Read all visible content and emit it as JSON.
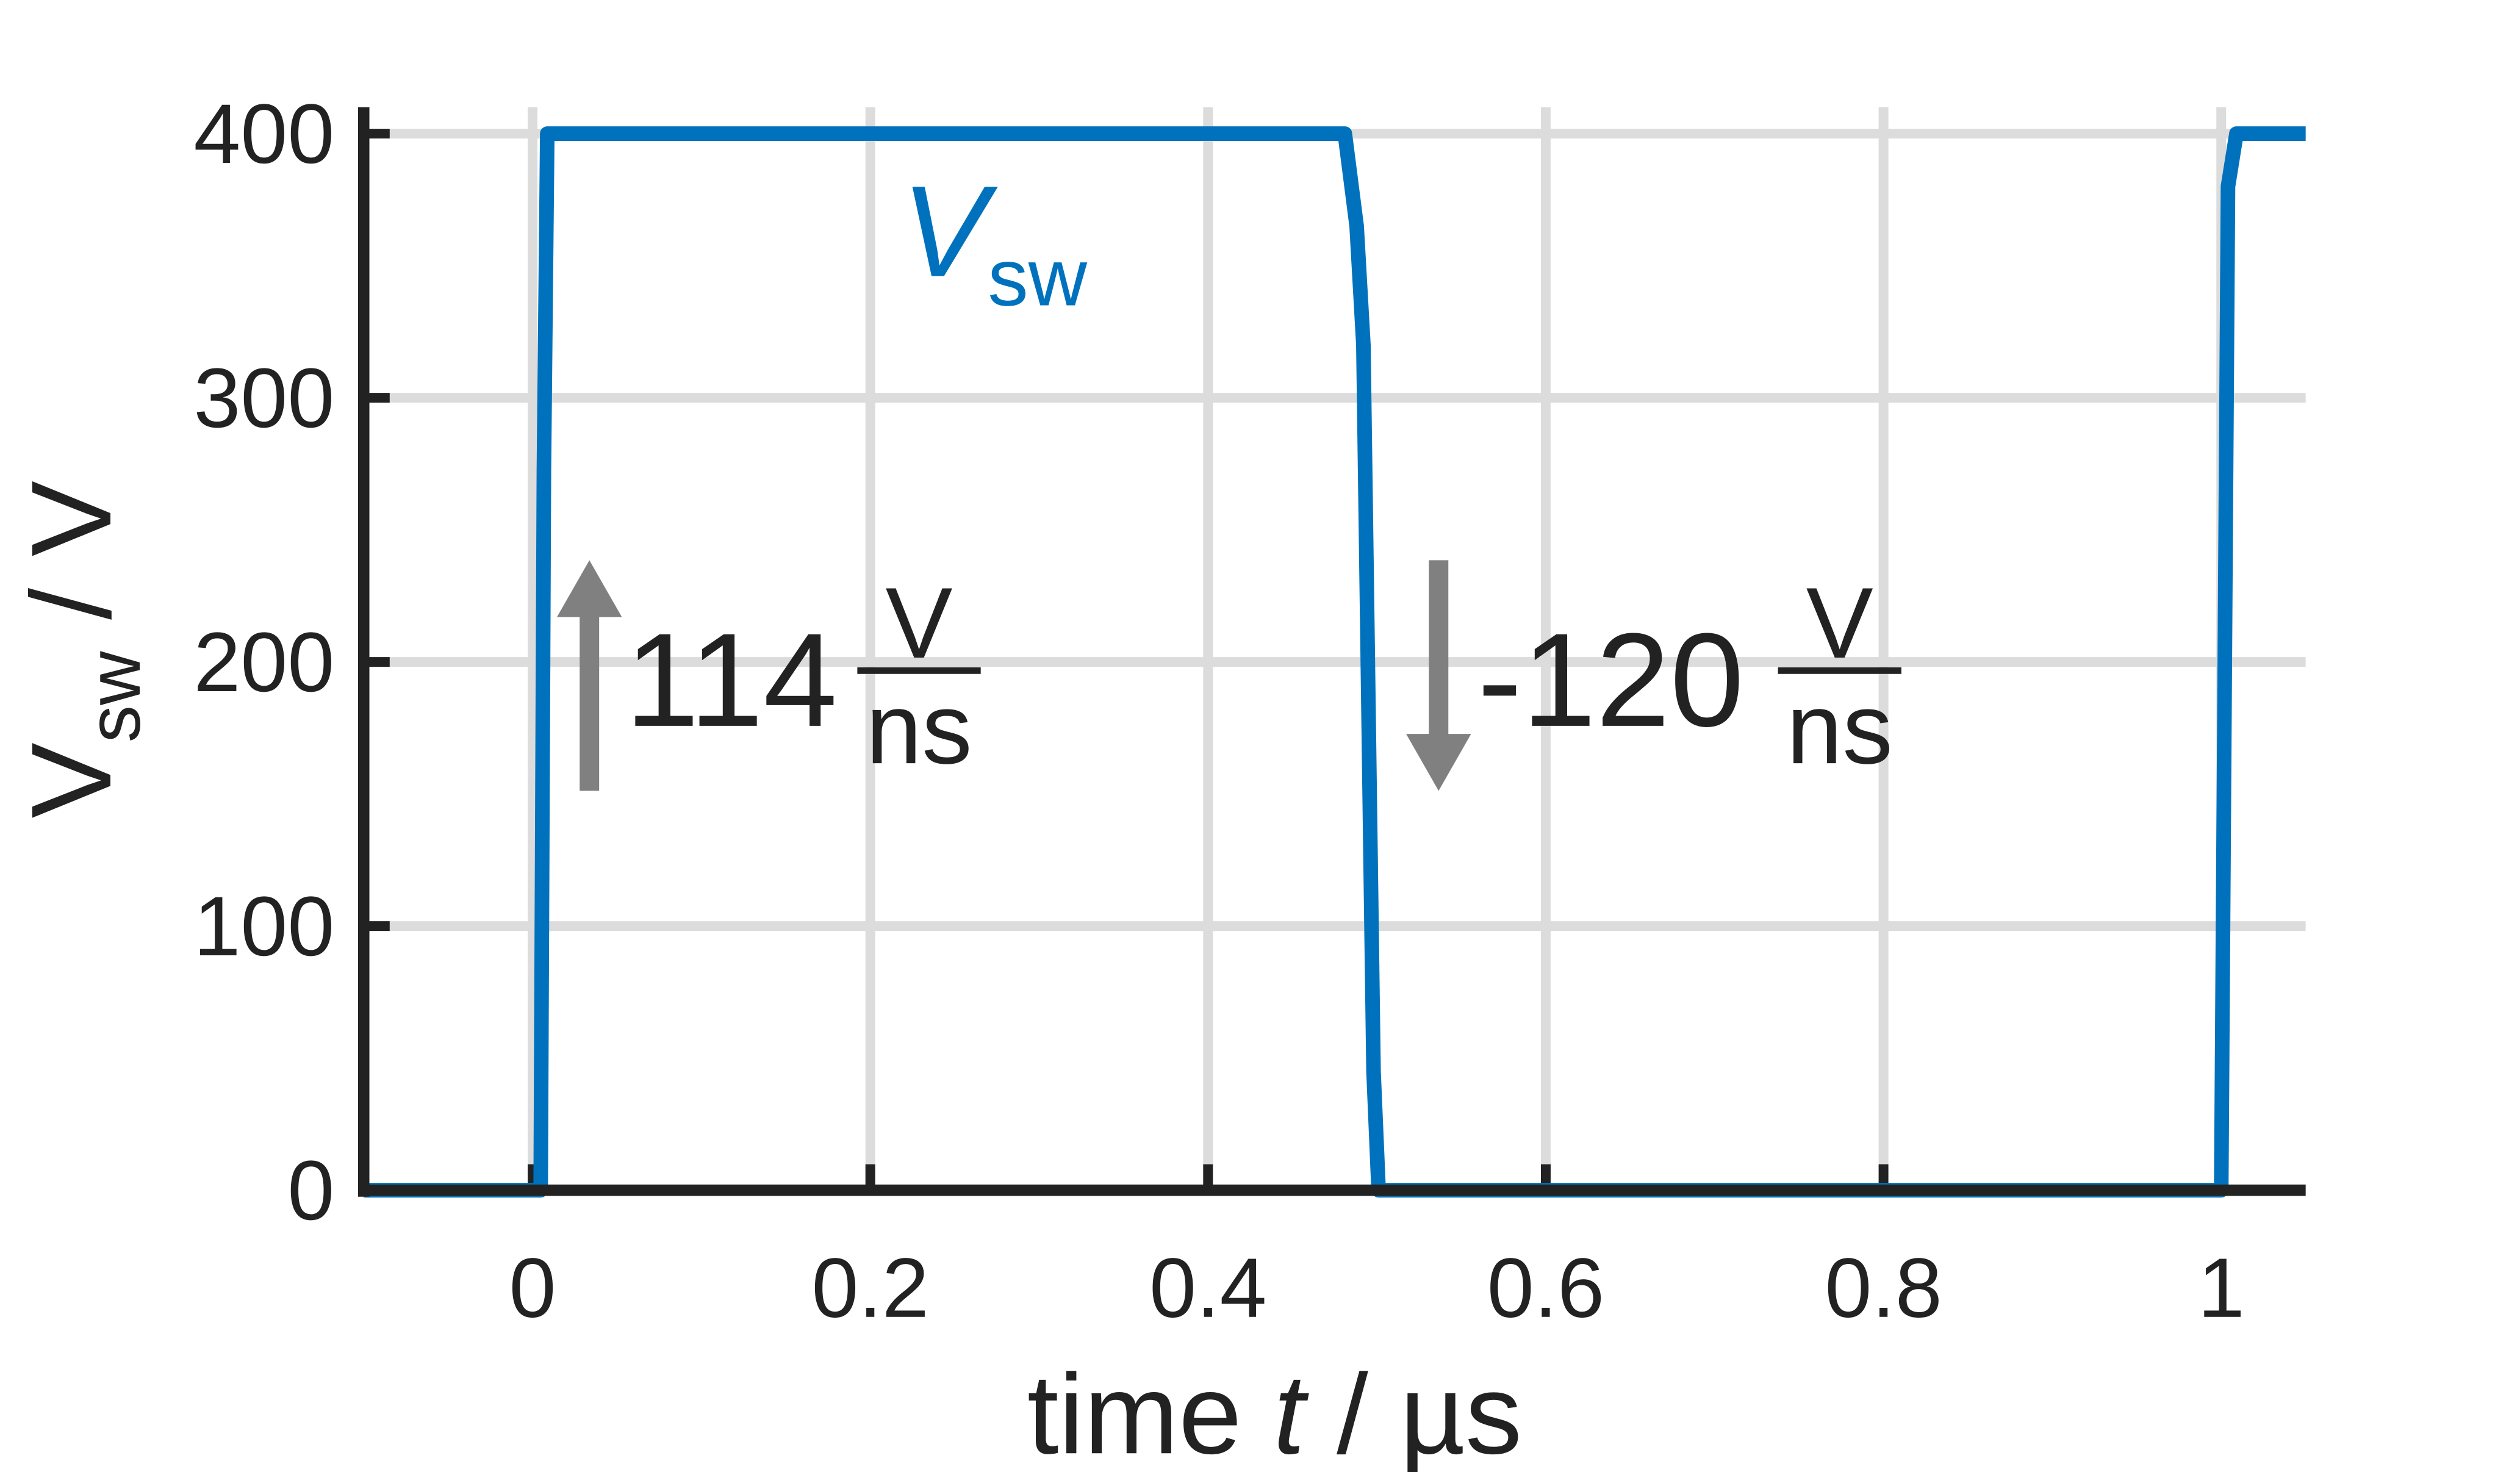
{
  "chart_data": {
    "type": "line",
    "xlabel": {
      "before": "time ",
      "italic": "t",
      "after": " / µs"
    },
    "ylabel": {
      "main": "V",
      "sub": "sw",
      "after": " / V"
    },
    "series": [
      {
        "name": {
          "main": "V",
          "sub": "sw"
        },
        "color": "#0072bd",
        "x": [
          -0.1,
          0.0048,
          0.0067,
          0.0087,
          0.481,
          0.488,
          0.492,
          0.498,
          0.501,
          1.0,
          1.004,
          1.009,
          1.05
        ],
        "values": [
          0,
          0,
          272,
          400,
          400,
          365,
          320,
          45,
          0,
          0,
          380,
          400,
          400
        ]
      }
    ],
    "annotations": [
      {
        "text": "114",
        "numerator": "V",
        "denominator": "ns"
      },
      {
        "text": "-120",
        "numerator": "V",
        "denominator": "ns"
      }
    ],
    "xlim": [
      -0.1,
      1.05
    ],
    "xticks": [
      0,
      0.2,
      0.4,
      0.6,
      0.8,
      1
    ],
    "ylim": [
      0,
      410
    ],
    "yticks": [
      0,
      100,
      200,
      300,
      400
    ],
    "grid": true
  }
}
